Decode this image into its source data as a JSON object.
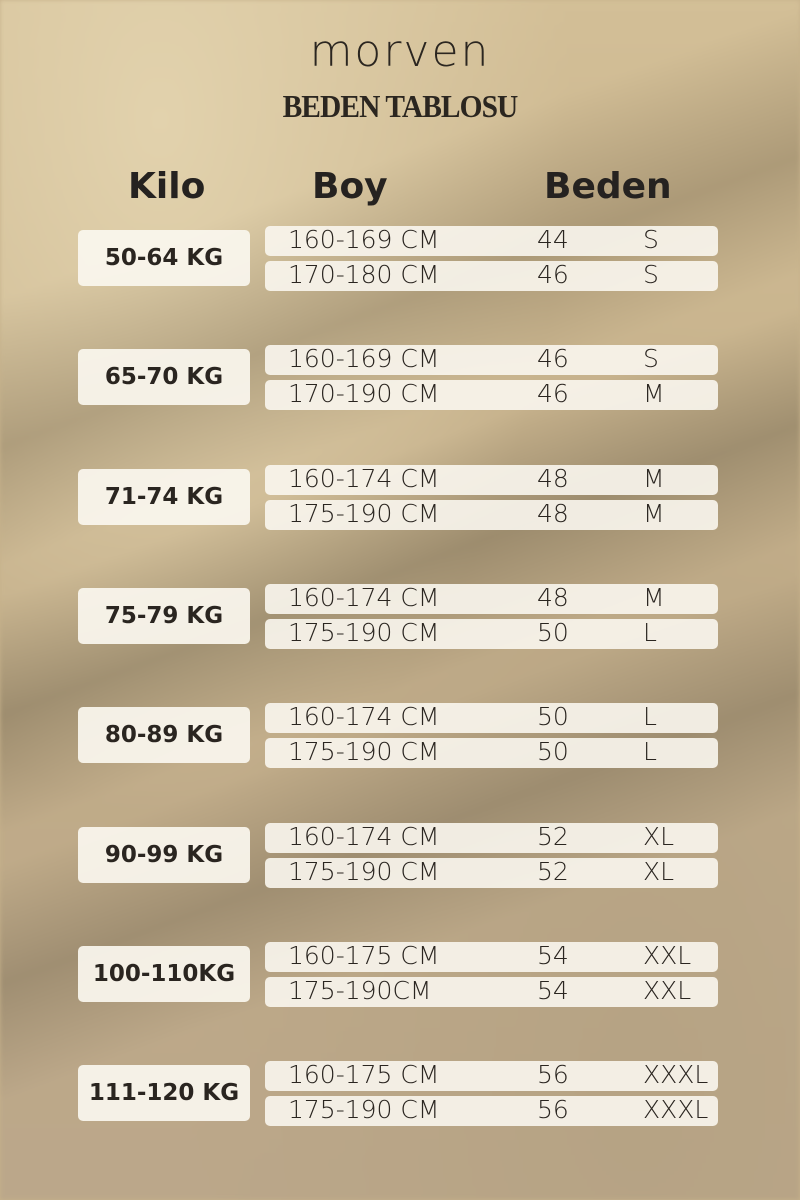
{
  "brand": "morven",
  "title": "BEDEN TABLOSU",
  "headers": {
    "kilo": "Kilo",
    "boy": "Boy",
    "beden": "Beden"
  },
  "groups": [
    {
      "kilo": "50-64 KG",
      "rows": [
        {
          "boy": "160-169 CM",
          "num": "44",
          "size": "S"
        },
        {
          "boy": "170-180 CM",
          "num": "46",
          "size": "S"
        }
      ]
    },
    {
      "kilo": "65-70 KG",
      "rows": [
        {
          "boy": "160-169 CM",
          "num": "46",
          "size": "S"
        },
        {
          "boy": "170-190 CM",
          "num": "46",
          "size": "M"
        }
      ]
    },
    {
      "kilo": "71-74 KG",
      "rows": [
        {
          "boy": "160-174 CM",
          "num": "48",
          "size": "M"
        },
        {
          "boy": "175-190 CM",
          "num": "48",
          "size": "M"
        }
      ]
    },
    {
      "kilo": "75-79 KG",
      "rows": [
        {
          "boy": "160-174 CM",
          "num": "48",
          "size": "M"
        },
        {
          "boy": "175-190 CM",
          "num": "50",
          "size": "L"
        }
      ]
    },
    {
      "kilo": "80-89 KG",
      "rows": [
        {
          "boy": "160-174 CM",
          "num": "50",
          "size": "L"
        },
        {
          "boy": "175-190 CM",
          "num": "50",
          "size": "L"
        }
      ]
    },
    {
      "kilo": "90-99 KG",
      "rows": [
        {
          "boy": "160-174 CM",
          "num": "52",
          "size": "XL"
        },
        {
          "boy": "175-190 CM",
          "num": "52",
          "size": "XL"
        }
      ]
    },
    {
      "kilo": "100-110KG",
      "rows": [
        {
          "boy": "160-175 CM",
          "num": "54",
          "size": "XXL"
        },
        {
          "boy": "175-190CM",
          "num": "54",
          "size": "XXL"
        }
      ]
    },
    {
      "kilo": "111-120 KG",
      "rows": [
        {
          "boy": "160-175 CM",
          "num": "56",
          "size": "XXXL"
        },
        {
          "boy": "175-190 CM",
          "num": "56",
          "size": "XXXL"
        }
      ]
    }
  ]
}
